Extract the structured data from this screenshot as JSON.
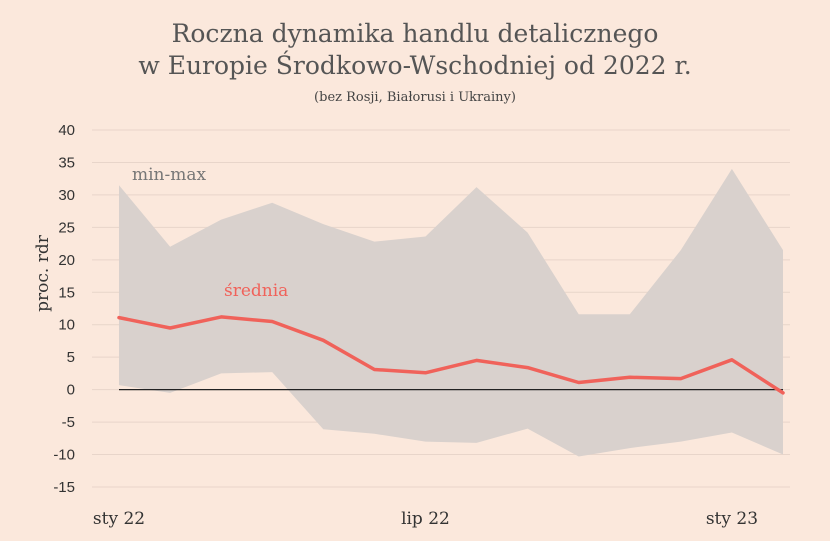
{
  "chart_data": {
    "type": "area",
    "title_line1": "Roczna dynamika handlu detalicznego",
    "title_line2": "w Europie Środkowo-Wschodniej od 2022 r.",
    "subtitle": "(bez Rosji, Białorusi i Ukrainy)",
    "ylabel": "proc. rdr",
    "ylim": [
      -15,
      40
    ],
    "yticks": [
      "40",
      "35",
      "30",
      "25",
      "20",
      "15",
      "10",
      "5",
      "0",
      "-5",
      "-10",
      "-15"
    ],
    "x": [
      "2022-01",
      "2022-02",
      "2022-03",
      "2022-04",
      "2022-05",
      "2022-06",
      "2022-07",
      "2022-08",
      "2022-09",
      "2022-10",
      "2022-11",
      "2022-12",
      "2023-01",
      "2023-02"
    ],
    "xtick_labels": [
      {
        "x": "2022-01",
        "label": "sty 22"
      },
      {
        "x": "2022-07",
        "label": "lip 22"
      },
      {
        "x": "2023-01",
        "label": "sty 23"
      }
    ],
    "series": [
      {
        "name": "min-max",
        "kind": "band",
        "color": "#d9d1cd",
        "max": [
          31.5,
          22.0,
          26.2,
          28.8,
          25.5,
          22.8,
          23.6,
          31.2,
          24.2,
          11.6,
          11.6,
          21.5,
          34.0,
          21.5
        ],
        "min": [
          0.7,
          -0.5,
          2.5,
          2.7,
          -6.1,
          -6.8,
          -8.0,
          -8.2,
          -6.0,
          -10.3,
          -9.0,
          -8.0,
          -6.6,
          -10.0
        ]
      },
      {
        "name": "średnia",
        "kind": "line",
        "color": "#f0625a",
        "values": [
          11.1,
          9.5,
          11.2,
          10.5,
          7.6,
          3.1,
          2.6,
          4.5,
          3.4,
          1.1,
          1.9,
          1.7,
          4.6,
          -0.5
        ]
      }
    ],
    "grid": true,
    "zero_line": true
  }
}
